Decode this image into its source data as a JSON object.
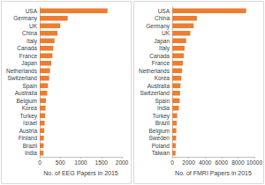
{
  "chart_data": [
    {
      "type": "bar",
      "orientation": "horizontal",
      "color": "#ed7d31",
      "grid": false,
      "x_label": "No. of EEG Papers in 2015",
      "categories": [
        "USA",
        "Germany",
        "UK",
        "China",
        "Italy",
        "Canada",
        "France",
        "Japan",
        "Netherlands",
        "Switzerland",
        "Spain",
        "Australia",
        "Belgium",
        "Korea",
        "Turkey",
        "Israel",
        "Austria",
        "Finland",
        "Brazil",
        "India"
      ],
      "values": [
        1650,
        680,
        500,
        430,
        360,
        330,
        310,
        280,
        250,
        230,
        200,
        180,
        150,
        140,
        130,
        120,
        110,
        100,
        95,
        90
      ],
      "xlim": [
        0,
        2000
      ],
      "xticks": [
        0,
        500,
        1000,
        1500,
        2000
      ]
    },
    {
      "type": "bar",
      "orientation": "horizontal",
      "color": "#ed7d31",
      "grid": false,
      "x_label": "No. of FMRI Papers in 2015",
      "categories": [
        "USA",
        "China",
        "Germany",
        "UK",
        "Japan",
        "Italy",
        "Canada",
        "France",
        "Netherlands",
        "Korea",
        "Australia",
        "Switzerland",
        "Spain",
        "India",
        "Turkey",
        "Brazil",
        "Belgium",
        "Sweden",
        "Poland",
        "Taiwan"
      ],
      "values": [
        9000,
        3000,
        2600,
        2200,
        1700,
        1500,
        1400,
        1300,
        1200,
        1100,
        1000,
        950,
        900,
        800,
        600,
        550,
        500,
        480,
        420,
        400
      ],
      "xlim": [
        0,
        10000
      ],
      "xticks": [
        0,
        2000,
        4000,
        6000,
        8000,
        10000
      ]
    }
  ]
}
